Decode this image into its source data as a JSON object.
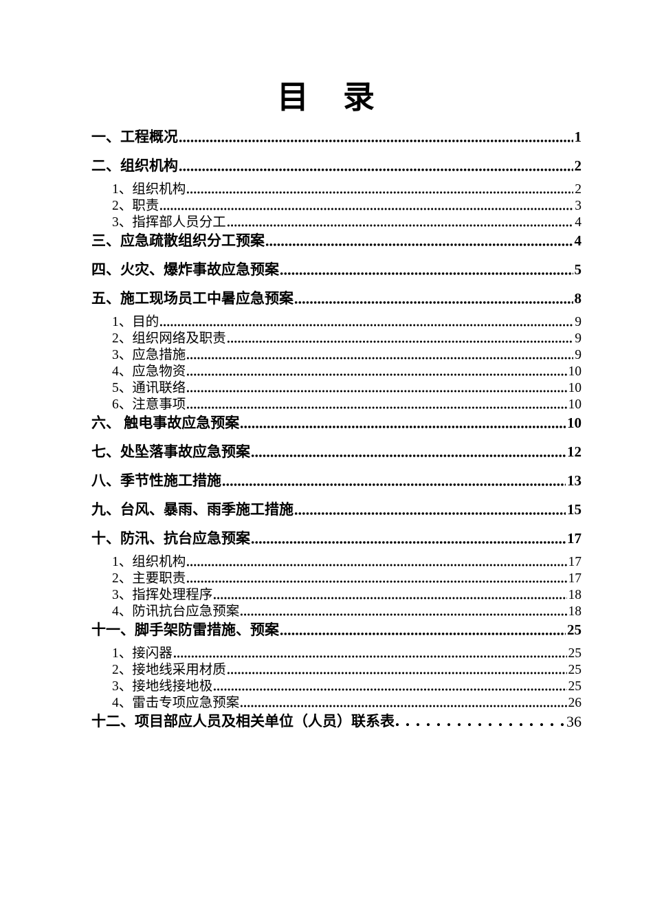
{
  "document": {
    "title": "目　录"
  },
  "colors": {
    "text": "#000000",
    "background": "#ffffff"
  },
  "toc": {
    "entries": [
      {
        "label": "一、工程概况",
        "page": "1",
        "level": 1,
        "leader": "dots"
      },
      {
        "label": "二、组织机构",
        "page": "2",
        "level": 1,
        "leader": "dots"
      },
      {
        "label": "1、组织机构",
        "page": "2",
        "level": 2,
        "leader": "dots"
      },
      {
        "label": "2、职责",
        "page": "3",
        "level": 2,
        "leader": "dots"
      },
      {
        "label": "3、指挥部人员分工",
        "page": "4",
        "level": 2,
        "leader": "dots"
      },
      {
        "label": "三、应急疏散组织分工预案",
        "page": "4",
        "level": 1,
        "leader": "dots"
      },
      {
        "label": "四、火灾、爆炸事故应急预案",
        "page": "5",
        "level": 1,
        "leader": "dots"
      },
      {
        "label": "五、施工现场员工中暑应急预案",
        "page": "8",
        "level": 1,
        "leader": "dots"
      },
      {
        "label": "1、目的",
        "page": "9",
        "level": 2,
        "leader": "dots"
      },
      {
        "label": "2、组织网络及职责",
        "page": "9",
        "level": 2,
        "leader": "dots"
      },
      {
        "label": "3、应急措施",
        "page": "9",
        "level": 2,
        "leader": "dots"
      },
      {
        "label": "4、应急物资",
        "page": "10",
        "level": 2,
        "leader": "dots"
      },
      {
        "label": "5、通讯联络",
        "page": "10",
        "level": 2,
        "leader": "dots"
      },
      {
        "label": "6、注意事项",
        "page": "10",
        "level": 2,
        "leader": "dots"
      },
      {
        "label": "六、 触电事故应急预案",
        "page": "10",
        "level": 1,
        "leader": "dots"
      },
      {
        "label": "七、处坠落事故应急预案",
        "page": "12",
        "level": 1,
        "leader": "dots"
      },
      {
        "label": "八、季节性施工措施",
        "page": "13",
        "level": 1,
        "leader": "dots"
      },
      {
        "label": "九、台风、暴雨、雨季施工措施",
        "page": "15",
        "level": 1,
        "leader": "dots"
      },
      {
        "label": "十、防汛、抗台应急预案",
        "page": "17",
        "level": 1,
        "leader": "dots"
      },
      {
        "label": "1、组织机构",
        "page": "17",
        "level": 2,
        "leader": "dots"
      },
      {
        "label": "2、主要职责",
        "page": "17",
        "level": 2,
        "leader": "dots"
      },
      {
        "label": "3、指挥处理程序",
        "page": "18",
        "level": 2,
        "leader": "dots"
      },
      {
        "label": "4、防讯抗台应急预案",
        "page": "18",
        "level": 2,
        "leader": "dots"
      },
      {
        "label": "十一、脚手架防雷措施、预案",
        "page": "25",
        "level": 1,
        "leader": "dots"
      },
      {
        "label": "1、接闪器",
        "page": "25",
        "level": 2,
        "leader": "dots"
      },
      {
        "label": "2、接地线采用材质",
        "page": "25",
        "level": 2,
        "leader": "dots"
      },
      {
        "label": "3、接地线接地极",
        "page": "25",
        "level": 2,
        "leader": "dots"
      },
      {
        "label": "4、雷击专项应急预案",
        "page": "26",
        "level": 2,
        "leader": "dots"
      },
      {
        "label": "十二、项目部应人员及相关单位（人员）联系表",
        "page": "36",
        "level": 1,
        "leader": "spaced-dots"
      }
    ]
  }
}
